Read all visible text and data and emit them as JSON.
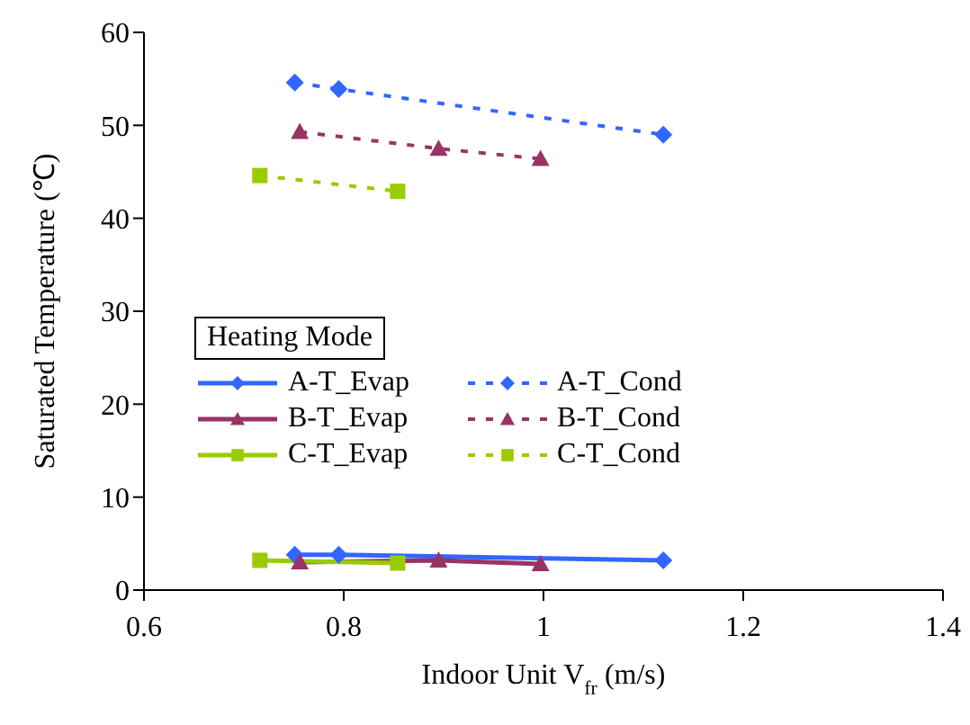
{
  "chart_data": {
    "type": "line",
    "xlabel": "Indoor Unit V$_{fr}$ (m/s)",
    "ylabel": "Saturated Temperature (℃)",
    "legend_title": "Heating Mode",
    "xlim": [
      0.6,
      1.4
    ],
    "xticks": [
      0.6,
      0.8,
      1,
      1.2,
      1.4
    ],
    "ylim": [
      0,
      60
    ],
    "yticks": [
      0,
      10,
      20,
      30,
      40,
      50,
      60
    ],
    "grid": false,
    "legend": "left",
    "series": [
      {
        "name": "A-T_Evap",
        "color": "#3366ff",
        "marker": "diamond",
        "line_style": "solid",
        "x": [
          0.751,
          0.795,
          1.12
        ],
        "values": [
          3.8,
          3.8,
          3.2
        ]
      },
      {
        "name": "A-T_Cond",
        "color": "#3366ff",
        "marker": "diamond",
        "line_style": "dashed",
        "x": [
          0.751,
          0.795,
          1.12
        ],
        "values": [
          54.6,
          53.9,
          49
        ]
      },
      {
        "name": "B-T_Evap",
        "color": "#993366",
        "marker": "triangle",
        "line_style": "solid",
        "x": [
          0.756,
          0.895,
          0.997
        ],
        "values": [
          3.0,
          3.2,
          2.8
        ]
      },
      {
        "name": "B-T_Cond",
        "color": "#993366",
        "marker": "triangle",
        "line_style": "dashed",
        "x": [
          0.756,
          0.895,
          0.997
        ],
        "values": [
          49.3,
          47.5,
          46.4
        ]
      },
      {
        "name": "C-T_Evap",
        "color": "#99cc00",
        "marker": "square",
        "line_style": "solid",
        "x": [
          0.716,
          0.854
        ],
        "values": [
          3.2,
          2.9
        ]
      },
      {
        "name": "C-T_Cond",
        "color": "#99cc00",
        "marker": "square",
        "line_style": "dashed",
        "x": [
          0.716,
          0.854
        ],
        "values": [
          44.6,
          42.9
        ]
      }
    ]
  }
}
